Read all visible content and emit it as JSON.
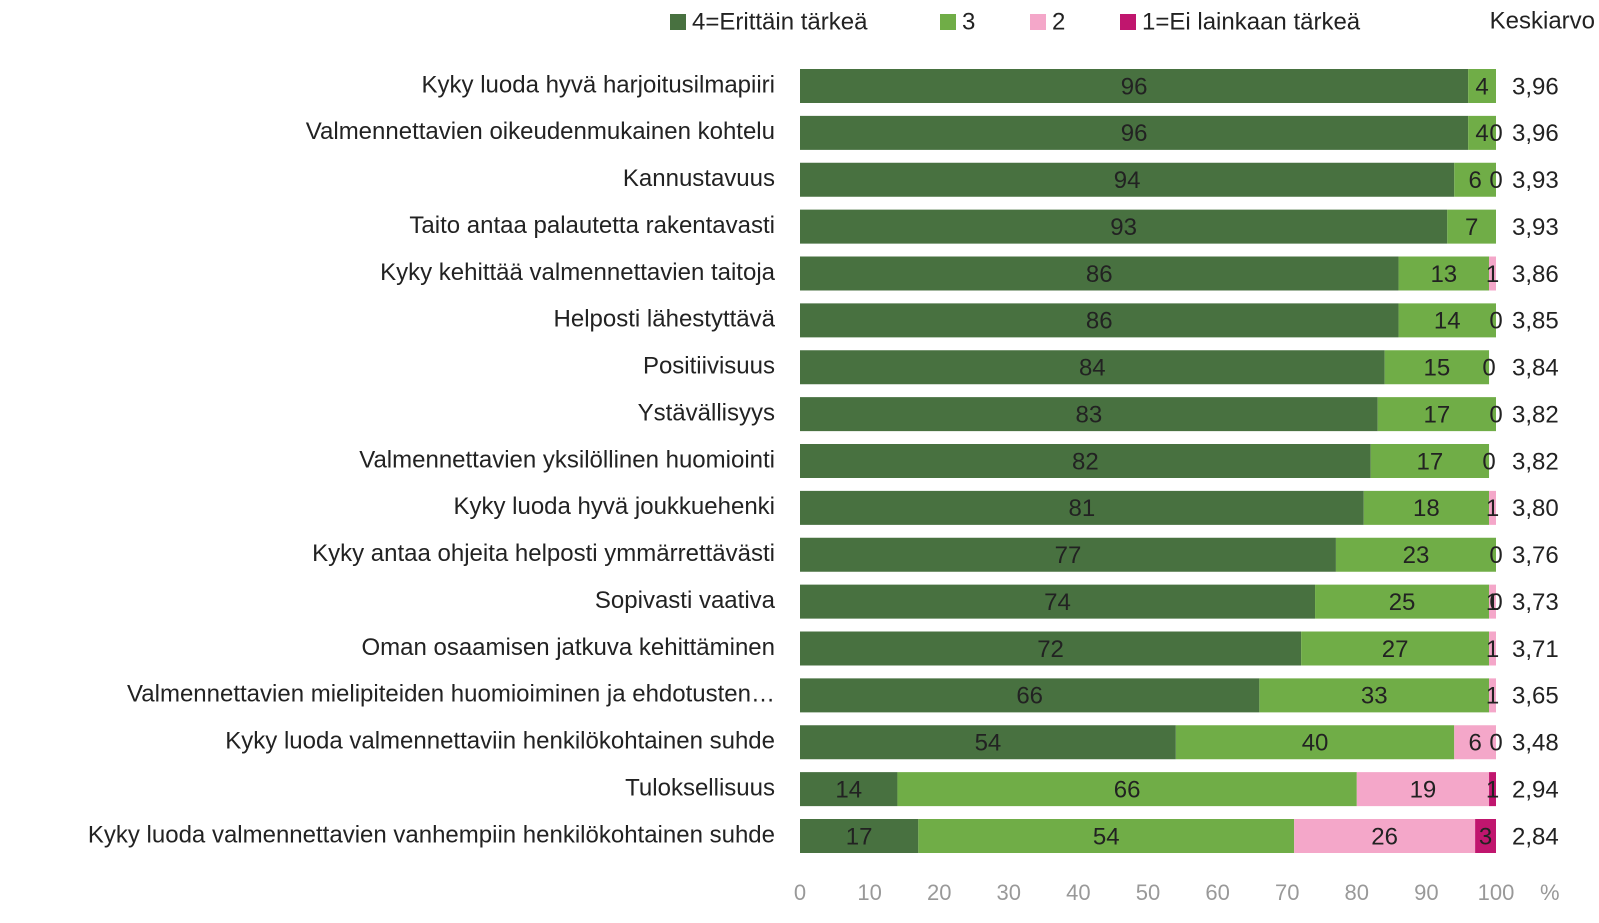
{
  "chart_data": {
    "type": "stacked-bar-horizontal",
    "categories": [
      "Kyky luoda hyvä harjoitusilmapiiri",
      "Valmennettavien oikeudenmukainen kohtelu",
      "Kannustavuus",
      "Taito antaa palautetta rakentavasti",
      "Kyky kehittää valmennettavien taitoja",
      "Helposti lähestyttävä",
      "Positiivisuus",
      "Ystävällisyys",
      "Valmennettavien yksilöllinen huomiointi",
      "Kyky luoda hyvä joukkuehenki",
      "Kyky antaa ohjeita helposti ymmärrettävästi",
      "Sopivasti vaativa",
      "Oman osaamisen jatkuva kehittäminen",
      "Valmennettavien mielipiteiden huomioiminen ja ehdotusten…",
      "Kyky luoda valmennettaviin henkilökohtainen suhde",
      "Tuloksellisuus",
      "Kyky luoda valmennettavien vanhempiin henkilökohtainen suhde"
    ],
    "series": [
      {
        "name": "4=Erittäin tärkeä",
        "color": "#487140",
        "label_color": "#ffffff",
        "values": [
          96,
          96,
          94,
          93,
          86,
          86,
          84,
          83,
          82,
          81,
          77,
          74,
          72,
          66,
          54,
          14,
          17
        ]
      },
      {
        "name": "3",
        "color": "#70ad47",
        "label_color": "#333333",
        "values": [
          4,
          4,
          6,
          7,
          13,
          14,
          15,
          17,
          17,
          18,
          23,
          25,
          27,
          33,
          40,
          66,
          54
        ]
      },
      {
        "name": "2",
        "color": "#f4a7c9",
        "label_color": "#333333",
        "values": [
          null,
          0,
          0,
          null,
          1,
          0,
          0,
          0,
          0,
          1,
          0,
          1,
          1,
          1,
          6,
          19,
          26
        ]
      },
      {
        "name": "1=Ei lainkaan tärkeä",
        "color": "#c0166e",
        "label_color": "#ffffff",
        "values": [
          null,
          null,
          null,
          null,
          null,
          null,
          null,
          null,
          null,
          null,
          null,
          0,
          null,
          null,
          0,
          1,
          3
        ]
      }
    ],
    "mean_title": "Keskiarvo",
    "means": [
      "3,96",
      "3,96",
      "3,93",
      "3,93",
      "3,86",
      "3,85",
      "3,84",
      "3,82",
      "3,82",
      "3,80",
      "3,76",
      "3,73",
      "3,71",
      "3,65",
      "3,48",
      "2,94",
      "2,84"
    ],
    "xlim": [
      0,
      100
    ],
    "xticks": [
      0,
      10,
      20,
      30,
      40,
      50,
      60,
      70,
      80,
      90,
      100
    ],
    "x_unit": "%"
  }
}
